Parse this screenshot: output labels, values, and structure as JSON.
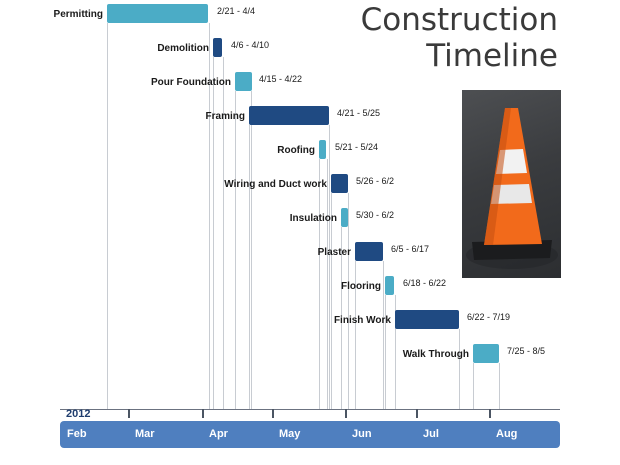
{
  "title_lines": [
    "Construction",
    "Timeline"
  ],
  "year": "2012",
  "colors": {
    "dark": "#1f4a82",
    "light": "#4bacc6",
    "axis_band": "#4f7fbf"
  },
  "image": {
    "subject": "traffic-cone-icon"
  },
  "timeline": {
    "start": "2012-02-01",
    "end": "2012-08-31",
    "months": [
      "Feb",
      "Mar",
      "Apr",
      "May",
      "Jun",
      "Jul",
      "Aug"
    ]
  },
  "tasks": [
    {
      "name": "Permitting",
      "range": "2/21 - 4/4",
      "start": "2012-02-21",
      "end": "2012-04-04",
      "color": "#4bacc6"
    },
    {
      "name": "Demolition",
      "range": "4/6 - 4/10",
      "start": "2012-04-06",
      "end": "2012-04-10",
      "color": "#1f4a82"
    },
    {
      "name": "Pour Foundation",
      "range": "4/15 - 4/22",
      "start": "2012-04-15",
      "end": "2012-04-22",
      "color": "#4bacc6"
    },
    {
      "name": "Framing",
      "range": "4/21 - 5/25",
      "start": "2012-04-21",
      "end": "2012-05-25",
      "color": "#1f4a82"
    },
    {
      "name": "Roofing",
      "range": "5/21 - 5/24",
      "start": "2012-05-21",
      "end": "2012-05-24",
      "color": "#4bacc6"
    },
    {
      "name": "Wiring and Duct work",
      "range": "5/26 - 6/2",
      "start": "2012-05-26",
      "end": "2012-06-02",
      "color": "#1f4a82"
    },
    {
      "name": "Insulation",
      "range": "5/30 - 6/2",
      "start": "2012-05-30",
      "end": "2012-06-02",
      "color": "#4bacc6"
    },
    {
      "name": "Plaster",
      "range": "6/5 - 6/17",
      "start": "2012-06-05",
      "end": "2012-06-17",
      "color": "#1f4a82"
    },
    {
      "name": "Flooring",
      "range": "6/18 - 6/22",
      "start": "2012-06-18",
      "end": "2012-06-22",
      "color": "#4bacc6"
    },
    {
      "name": "Finish Work",
      "range": "6/22 - 7/19",
      "start": "2012-06-22",
      "end": "2012-07-19",
      "color": "#1f4a82"
    },
    {
      "name": "Walk Through",
      "range": "7/25 - 8/5",
      "start": "2012-07-25",
      "end": "2012-08-05",
      "color": "#4bacc6"
    }
  ]
}
